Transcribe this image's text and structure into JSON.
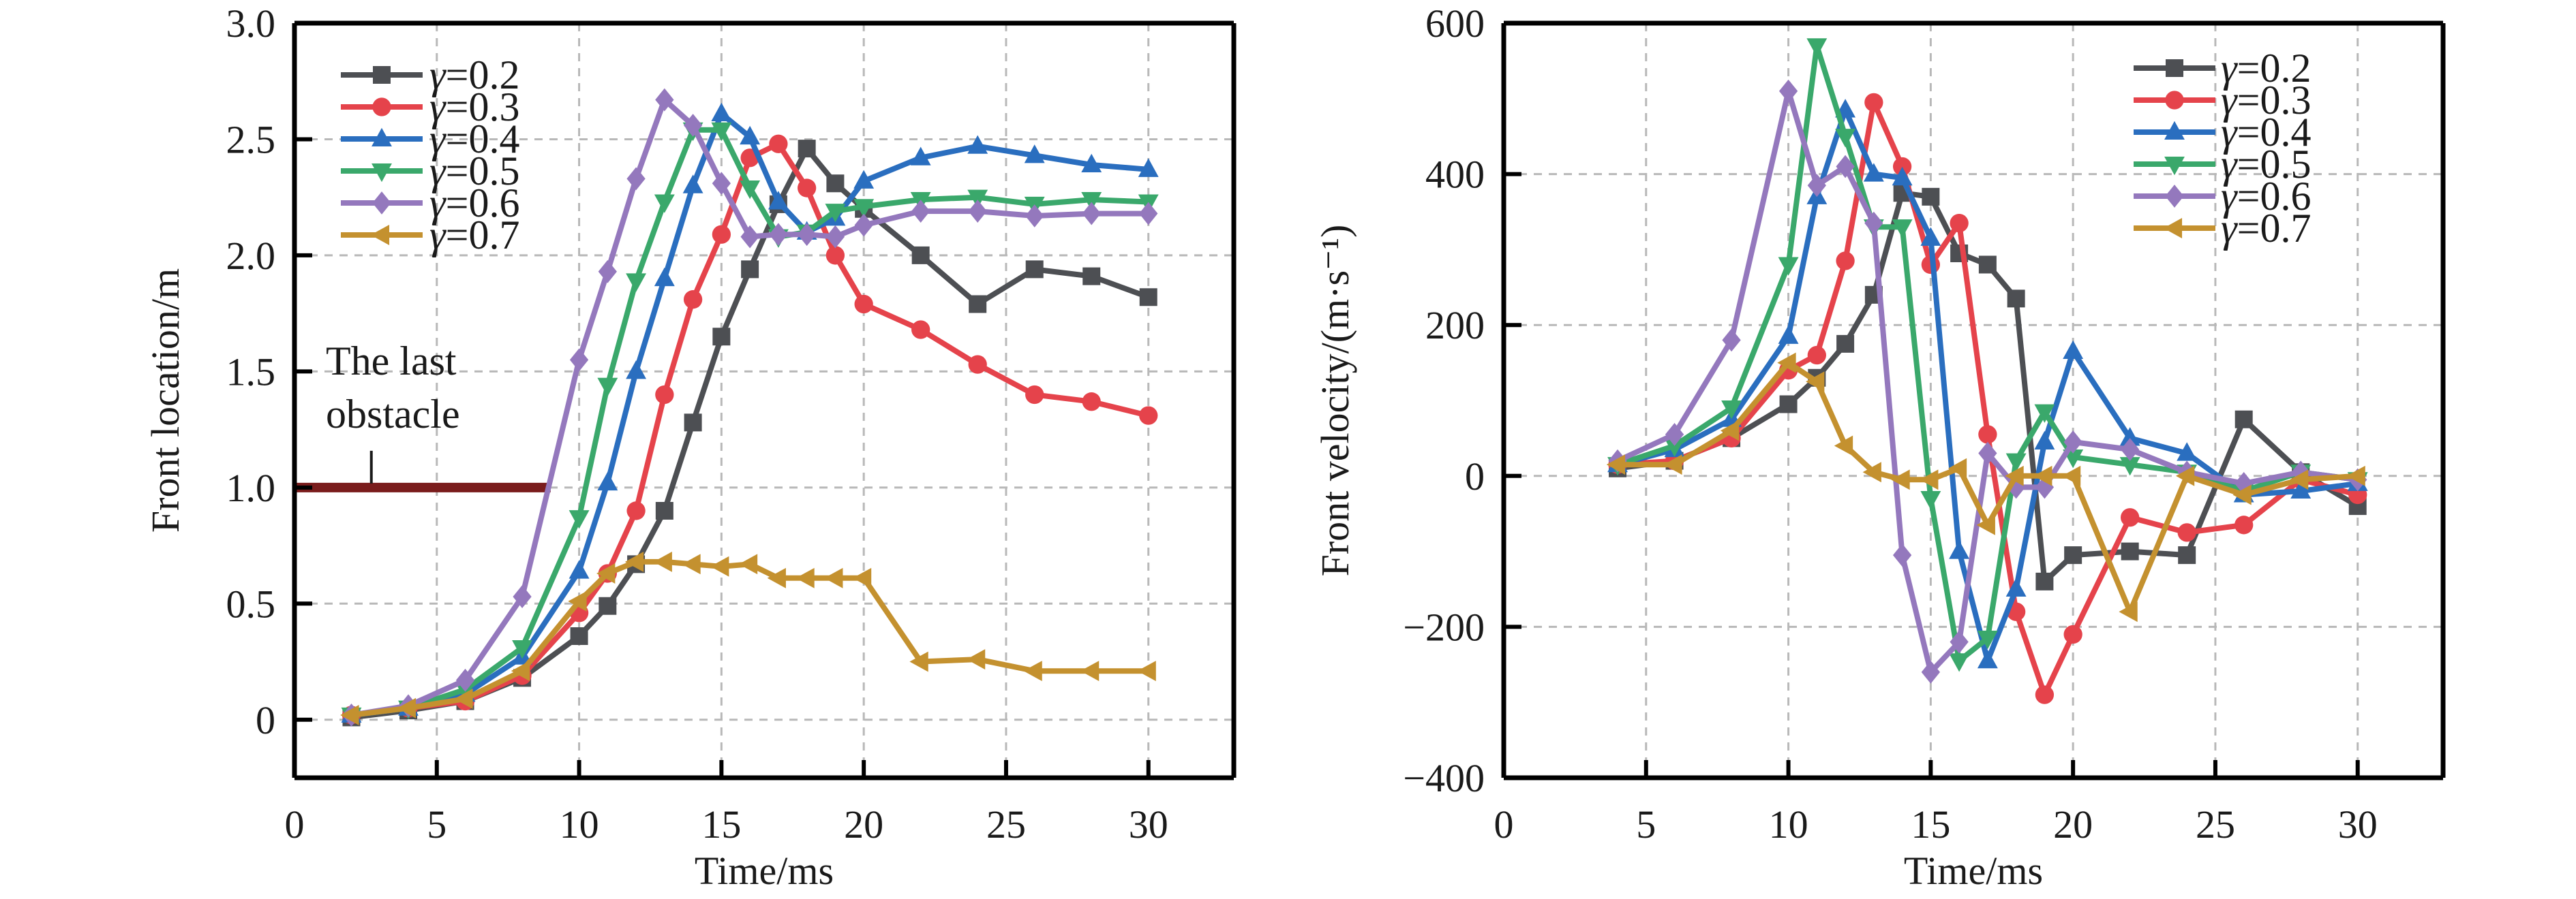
{
  "chart_data": [
    {
      "id": "front-location",
      "type": "line",
      "title": "",
      "xlabel": "Time/ms",
      "ylabel": "Front location/m",
      "xlim": [
        0,
        33
      ],
      "ylim": [
        -0.25,
        3.0
      ],
      "xticks": [
        0,
        5,
        10,
        15,
        20,
        25,
        30
      ],
      "xtick_labels": [
        "0",
        "5",
        "10",
        "15",
        "20",
        "25",
        "30"
      ],
      "yticks": [
        0,
        0.5,
        1.0,
        1.5,
        2.0,
        2.5,
        3.0
      ],
      "ytick_labels": [
        "0",
        "0.5",
        "1.0",
        "1.5",
        "2.0",
        "2.5",
        "3.0"
      ],
      "grid": true,
      "legend_position": "top-left",
      "annotation": {
        "lines": [
          "The last",
          "obstacle"
        ],
        "bar": {
          "x_from": 0,
          "x_to": 9,
          "y": 1.0,
          "color": "#7a1c1c"
        },
        "pointer_x": 2.7
      },
      "x": [
        2,
        4,
        6,
        8,
        10,
        11,
        12,
        13,
        14,
        15,
        16,
        17,
        18,
        19,
        20,
        22,
        24,
        26,
        28,
        30
      ],
      "series": [
        {
          "name": "γ=0.2",
          "gamma": "0.2",
          "color": "#4d4f53",
          "marker": "square",
          "values": [
            0.01,
            0.04,
            0.08,
            0.18,
            0.36,
            0.49,
            0.67,
            0.9,
            1.28,
            1.65,
            1.94,
            2.22,
            2.46,
            2.31,
            2.2,
            2.0,
            1.79,
            1.94,
            1.91,
            1.82
          ]
        },
        {
          "name": "γ=0.3",
          "gamma": "0.3",
          "color": "#e5434b",
          "marker": "circle",
          "values": [
            0.02,
            0.05,
            0.08,
            0.19,
            0.46,
            0.63,
            0.9,
            1.4,
            1.81,
            2.09,
            2.42,
            2.48,
            2.29,
            2.0,
            1.79,
            1.68,
            1.53,
            1.4,
            1.37,
            1.31
          ]
        },
        {
          "name": "γ=0.4",
          "gamma": "0.4",
          "color": "#2a6ebf",
          "marker": "triangle-up",
          "values": [
            0.02,
            0.05,
            0.11,
            0.27,
            0.64,
            1.02,
            1.5,
            1.9,
            2.3,
            2.61,
            2.51,
            2.23,
            2.1,
            2.16,
            2.32,
            2.42,
            2.47,
            2.43,
            2.39,
            2.37
          ]
        },
        {
          "name": "γ=0.5",
          "gamma": "0.5",
          "color": "#3aa86b",
          "marker": "triangle-down",
          "values": [
            0.02,
            0.05,
            0.13,
            0.31,
            0.87,
            1.44,
            1.89,
            2.23,
            2.54,
            2.54,
            2.29,
            2.08,
            2.1,
            2.19,
            2.21,
            2.24,
            2.25,
            2.22,
            2.24,
            2.23
          ]
        },
        {
          "name": "γ=0.6",
          "gamma": "0.6",
          "color": "#9478bd",
          "marker": "diamond",
          "values": [
            0.02,
            0.06,
            0.17,
            0.53,
            1.55,
            1.93,
            2.33,
            2.67,
            2.56,
            2.31,
            2.08,
            2.09,
            2.09,
            2.08,
            2.13,
            2.19,
            2.19,
            2.17,
            2.18,
            2.18
          ]
        },
        {
          "name": "γ=0.7",
          "gamma": "0.7",
          "color": "#c4912f",
          "marker": "triangle-left",
          "values": [
            0.02,
            0.05,
            0.09,
            0.21,
            0.51,
            0.63,
            0.68,
            0.68,
            0.67,
            0.66,
            0.67,
            0.61,
            0.61,
            0.61,
            0.61,
            0.25,
            0.26,
            0.21,
            0.21,
            0.21
          ]
        }
      ]
    },
    {
      "id": "front-velocity",
      "type": "line",
      "title": "",
      "xlabel": "Time/ms",
      "ylabel": "Front velocity/(m·s⁻¹)",
      "xlim": [
        0,
        33
      ],
      "ylim": [
        -400,
        600
      ],
      "xticks": [
        0,
        5,
        10,
        15,
        20,
        25,
        30
      ],
      "xtick_labels": [
        "0",
        "5",
        "10",
        "15",
        "20",
        "25",
        "30"
      ],
      "yticks": [
        -400,
        -200,
        0,
        200,
        400,
        600
      ],
      "ytick_labels": [
        "−400",
        "−200",
        "0",
        "200",
        "400",
        "600"
      ],
      "grid": true,
      "legend_position": "top-right",
      "x": [
        4,
        6,
        8,
        10,
        11,
        12,
        13,
        14,
        15,
        16,
        17,
        18,
        19,
        20,
        22,
        24,
        26,
        28,
        30
      ],
      "series": [
        {
          "name": "γ=0.2",
          "gamma": "0.2",
          "color": "#4d4f53",
          "marker": "square",
          "values": [
            10,
            20,
            50,
            95,
            130,
            175,
            240,
            375,
            370,
            295,
            280,
            235,
            -140,
            -105,
            -100,
            -105,
            75,
            5,
            -40
          ]
        },
        {
          "name": "γ=0.3",
          "gamma": "0.3",
          "color": "#e5434b",
          "marker": "circle",
          "values": [
            15,
            20,
            50,
            140,
            160,
            285,
            495,
            410,
            280,
            335,
            55,
            -180,
            -290,
            -210,
            -55,
            -75,
            -65,
            -5,
            -25
          ]
        },
        {
          "name": "γ=0.4",
          "gamma": "0.4",
          "color": "#2a6ebf",
          "marker": "triangle-up",
          "values": [
            15,
            35,
            75,
            185,
            370,
            485,
            400,
            395,
            315,
            -100,
            -245,
            -150,
            45,
            165,
            50,
            30,
            -25,
            -20,
            -10
          ]
        },
        {
          "name": "γ=0.5",
          "gamma": "0.5",
          "color": "#3aa86b",
          "marker": "triangle-down",
          "values": [
            15,
            40,
            90,
            280,
            570,
            450,
            330,
            330,
            -30,
            -245,
            -215,
            20,
            85,
            25,
            15,
            5,
            -20,
            5,
            -5
          ]
        },
        {
          "name": "γ=0.6",
          "gamma": "0.6",
          "color": "#9478bd",
          "marker": "diamond",
          "values": [
            20,
            55,
            180,
            510,
            385,
            410,
            335,
            -105,
            -260,
            -220,
            30,
            -15,
            -15,
            45,
            35,
            5,
            -10,
            5,
            -5
          ]
        },
        {
          "name": "γ=0.7",
          "gamma": "0.7",
          "color": "#c4912f",
          "marker": "triangle-left",
          "values": [
            15,
            15,
            60,
            150,
            125,
            40,
            5,
            -5,
            -5,
            10,
            -65,
            0,
            0,
            0,
            -180,
            0,
            -25,
            -5,
            0
          ]
        }
      ]
    }
  ]
}
